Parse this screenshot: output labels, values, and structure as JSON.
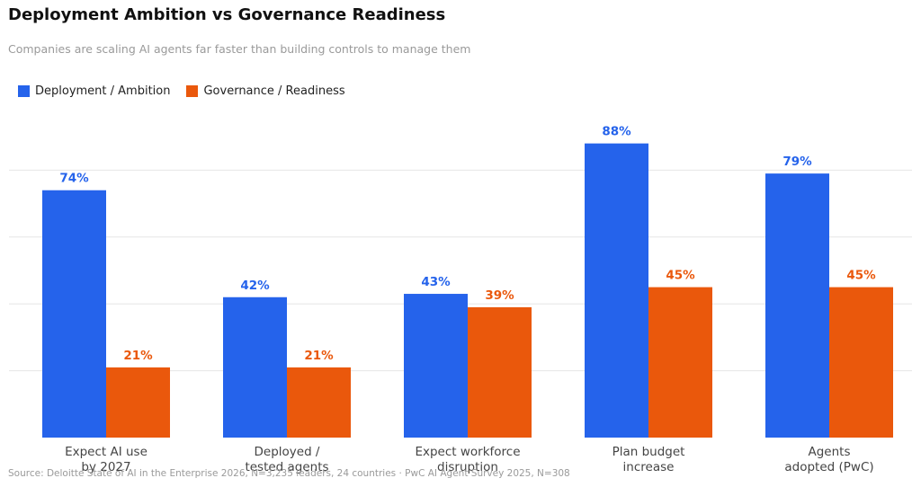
{
  "chart_data": {
    "type": "bar",
    "title": "Deployment Ambition vs Governance Readiness",
    "subtitle": "Companies are scaling AI agents far faster than building controls to manage them",
    "categories": [
      [
        "Expect AI use",
        "by 2027"
      ],
      [
        "Deployed /",
        "tested agents"
      ],
      [
        "Expect workforce",
        "disruption"
      ],
      [
        "Plan budget",
        "increase"
      ],
      [
        "Agents",
        "adopted (PwC)"
      ]
    ],
    "series": [
      {
        "name": "Deployment / Ambition",
        "color": "#2563EB",
        "values": [
          74,
          42,
          43,
          88,
          79
        ],
        "labels": [
          "74%",
          "42%",
          "43%",
          "88%",
          "79%"
        ]
      },
      {
        "name": "Governance / Readiness",
        "color": "#EA580C",
        "values": [
          21,
          21,
          39,
          45,
          45
        ],
        "labels": [
          "21%",
          "21%",
          "39%",
          "45%",
          "45%"
        ]
      }
    ],
    "ylim": [
      0,
      100
    ],
    "grid": true,
    "legend_position": "top-left",
    "source": "Source: Deloitte State of AI in the Enterprise 2026, N=3,235 leaders, 24 countries  ·  PwC AI Agent Survey 2025, N=308"
  }
}
